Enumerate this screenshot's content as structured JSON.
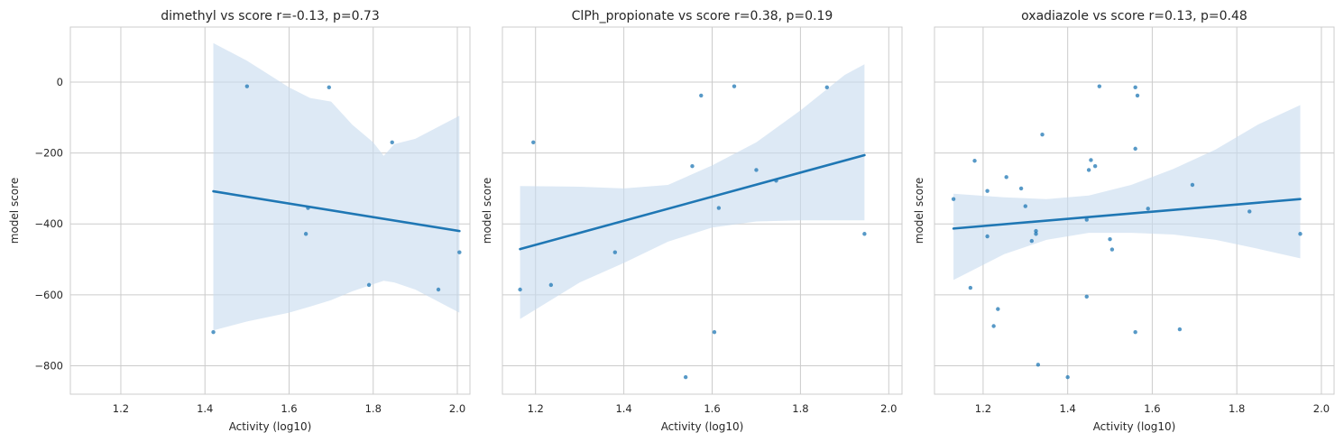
{
  "chart_data": [
    {
      "type": "scatter",
      "title": "dimethyl vs score r=-0.13, p=0.73",
      "xlabel": "Activity (log10)",
      "ylabel": "model score",
      "xlim": [
        1.08,
        2.03
      ],
      "ylim": [
        -880,
        155
      ],
      "xticks": [
        1.2,
        1.4,
        1.6,
        1.8,
        2.0
      ],
      "yticks": [
        0,
        -200,
        -400,
        -600,
        -800
      ],
      "show_y_tick_labels": true,
      "grid": true,
      "points": [
        {
          "x": 1.42,
          "y": -705
        },
        {
          "x": 1.5,
          "y": -12
        },
        {
          "x": 1.64,
          "y": -428
        },
        {
          "x": 1.645,
          "y": -355
        },
        {
          "x": 1.695,
          "y": -15
        },
        {
          "x": 1.79,
          "y": -572
        },
        {
          "x": 1.845,
          "y": -170
        },
        {
          "x": 1.955,
          "y": -585
        },
        {
          "x": 2.005,
          "y": -480
        }
      ],
      "fit_line": [
        [
          1.42,
          -308
        ],
        [
          2.005,
          -420
        ]
      ],
      "ci_band": {
        "x": [
          1.42,
          1.5,
          1.6,
          1.65,
          1.7,
          1.75,
          1.8,
          1.825,
          1.85,
          1.9,
          2.005
        ],
        "upper": [
          110,
          60,
          -15,
          -45,
          -55,
          -120,
          -170,
          -208,
          -175,
          -160,
          -95
        ],
        "lower": [
          -700,
          -675,
          -650,
          -633,
          -615,
          -590,
          -570,
          -560,
          -565,
          -585,
          -650
        ]
      }
    },
    {
      "type": "scatter",
      "title": "ClPh_propionate vs score r=0.38, p=0.19",
      "xlabel": "Activity (log10)",
      "ylabel": "model score",
      "xlim": [
        1.125,
        2.03
      ],
      "ylim": [
        -880,
        155
      ],
      "xticks": [
        1.2,
        1.4,
        1.6,
        1.8,
        2.0
      ],
      "yticks": [
        0,
        -200,
        -400,
        -600,
        -800
      ],
      "show_y_tick_labels": false,
      "grid": true,
      "points": [
        {
          "x": 1.165,
          "y": -585
        },
        {
          "x": 1.195,
          "y": -170
        },
        {
          "x": 1.235,
          "y": -572
        },
        {
          "x": 1.38,
          "y": -480
        },
        {
          "x": 1.54,
          "y": -832
        },
        {
          "x": 1.555,
          "y": -237
        },
        {
          "x": 1.575,
          "y": -38
        },
        {
          "x": 1.605,
          "y": -705
        },
        {
          "x": 1.615,
          "y": -355
        },
        {
          "x": 1.65,
          "y": -12
        },
        {
          "x": 1.7,
          "y": -248
        },
        {
          "x": 1.745,
          "y": -278
        },
        {
          "x": 1.86,
          "y": -15
        },
        {
          "x": 1.945,
          "y": -428
        }
      ],
      "fit_line": [
        [
          1.165,
          -471
        ],
        [
          1.945,
          -206
        ]
      ],
      "ci_band": {
        "x": [
          1.165,
          1.3,
          1.4,
          1.5,
          1.6,
          1.7,
          1.8,
          1.9,
          1.945
        ],
        "upper": [
          -293,
          -295,
          -300,
          -290,
          -235,
          -170,
          -80,
          20,
          50
        ],
        "lower": [
          -668,
          -565,
          -510,
          -450,
          -410,
          -393,
          -390,
          -390,
          -390
        ]
      }
    },
    {
      "type": "scatter",
      "title": "oxadiazole vs score r=0.13, p=0.48",
      "xlabel": "Activity (log10)",
      "ylabel": "model score",
      "xlim": [
        1.085,
        2.03
      ],
      "ylim": [
        -880,
        155
      ],
      "xticks": [
        1.2,
        1.4,
        1.6,
        1.8,
        2.0
      ],
      "yticks": [
        0,
        -200,
        -400,
        -600,
        -800
      ],
      "show_y_tick_labels": false,
      "grid": true,
      "points": [
        {
          "x": 1.13,
          "y": -330
        },
        {
          "x": 1.17,
          "y": -580
        },
        {
          "x": 1.18,
          "y": -222
        },
        {
          "x": 1.21,
          "y": -307
        },
        {
          "x": 1.21,
          "y": -435
        },
        {
          "x": 1.225,
          "y": -688
        },
        {
          "x": 1.235,
          "y": -640
        },
        {
          "x": 1.255,
          "y": -268
        },
        {
          "x": 1.29,
          "y": -300
        },
        {
          "x": 1.3,
          "y": -350
        },
        {
          "x": 1.315,
          "y": -448
        },
        {
          "x": 1.325,
          "y": -420
        },
        {
          "x": 1.325,
          "y": -428
        },
        {
          "x": 1.33,
          "y": -797
        },
        {
          "x": 1.34,
          "y": -148
        },
        {
          "x": 1.4,
          "y": -832
        },
        {
          "x": 1.445,
          "y": -388
        },
        {
          "x": 1.445,
          "y": -605
        },
        {
          "x": 1.45,
          "y": -248
        },
        {
          "x": 1.455,
          "y": -220
        },
        {
          "x": 1.465,
          "y": -237
        },
        {
          "x": 1.475,
          "y": -12
        },
        {
          "x": 1.5,
          "y": -443
        },
        {
          "x": 1.505,
          "y": -472
        },
        {
          "x": 1.56,
          "y": -15
        },
        {
          "x": 1.56,
          "y": -188
        },
        {
          "x": 1.56,
          "y": -705
        },
        {
          "x": 1.565,
          "y": -38
        },
        {
          "x": 1.59,
          "y": -357
        },
        {
          "x": 1.665,
          "y": -697
        },
        {
          "x": 1.695,
          "y": -290
        },
        {
          "x": 1.83,
          "y": -365
        },
        {
          "x": 1.95,
          "y": -428
        }
      ],
      "fit_line": [
        [
          1.13,
          -413
        ],
        [
          1.95,
          -330
        ]
      ],
      "ci_band": {
        "x": [
          1.13,
          1.25,
          1.35,
          1.45,
          1.55,
          1.65,
          1.75,
          1.85,
          1.95
        ],
        "upper": [
          -315,
          -325,
          -330,
          -320,
          -290,
          -245,
          -190,
          -120,
          -65
        ],
        "lower": [
          -558,
          -485,
          -445,
          -425,
          -425,
          -430,
          -445,
          -470,
          -497
        ]
      }
    }
  ],
  "colors": {
    "line": "#1f77b4",
    "points": "#1f77b4",
    "band": "#c6dbef"
  }
}
